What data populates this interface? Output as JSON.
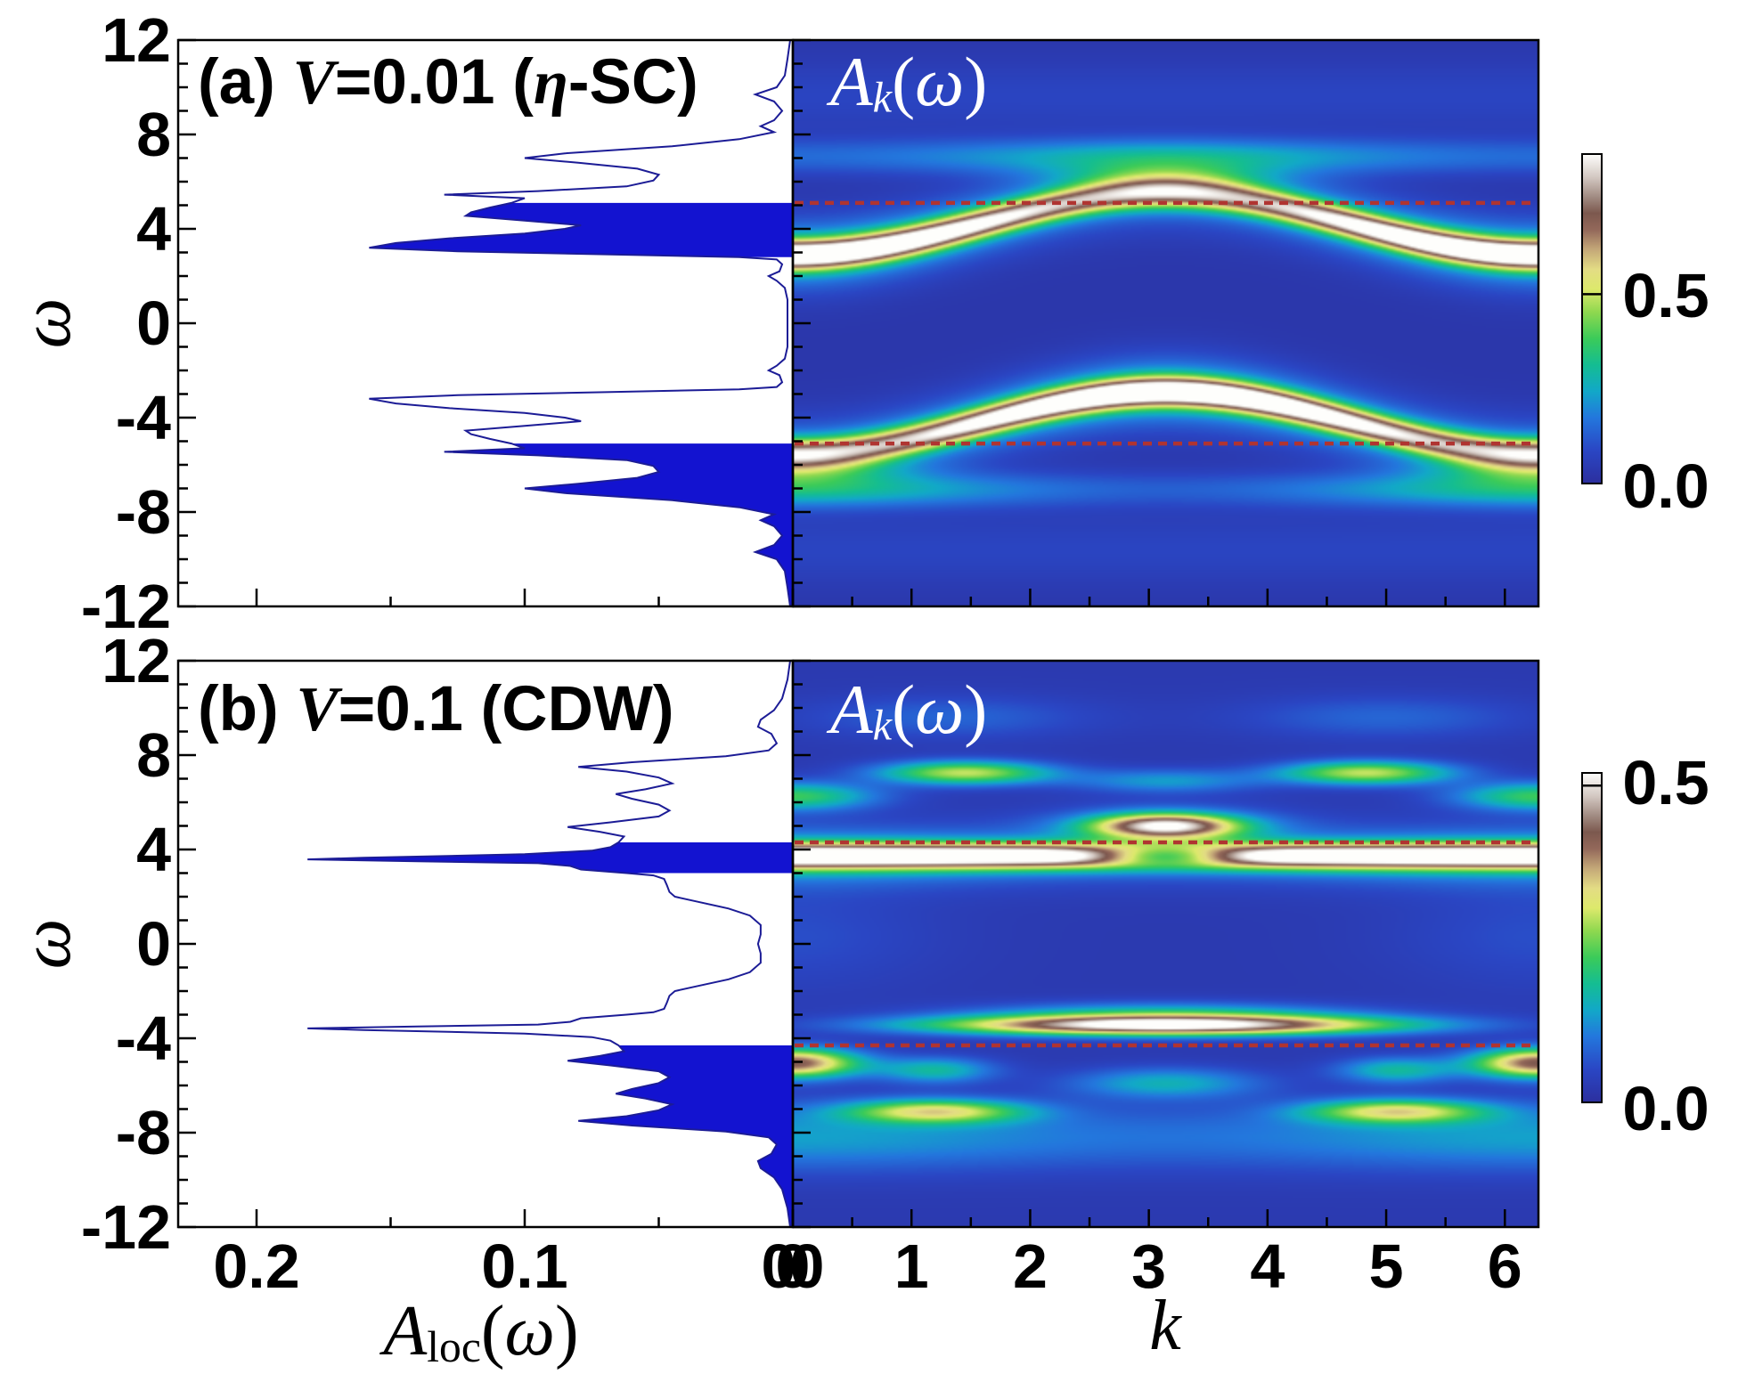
{
  "figure": {
    "omega_axis": {
      "label": "ω",
      "tick_labels": [
        "12",
        "8",
        "4",
        "0",
        "-4",
        "-8",
        "-12"
      ],
      "tick_values": [
        12,
        8,
        4,
        0,
        -4,
        -8,
        -12
      ],
      "minor_step": 1,
      "range": [
        -12,
        12
      ]
    },
    "aloc_axis": {
      "label_parts": [
        [
          "A",
          "rt-it"
        ],
        [
          "loc",
          "rt-sub"
        ],
        [
          "(",
          "rt-sr"
        ],
        [
          "ω",
          "rt-it"
        ],
        [
          ")",
          "rt-sr"
        ]
      ],
      "tick_labels": [
        "0.2",
        "0.1"
      ],
      "tick_values": [
        0.2,
        0.1
      ],
      "minor_values": [
        0.15,
        0.05
      ],
      "range_max": 0.229
    },
    "k_axis": {
      "label": "k",
      "tick_labels": [
        "1",
        "2",
        "3",
        "4",
        "5",
        "6"
      ],
      "tick_values": [
        1,
        2,
        3,
        4,
        5,
        6
      ],
      "minor_step": 0.5,
      "range": [
        0,
        6.2832
      ]
    },
    "junction_zero_labels": [
      "0",
      "0",
      "0"
    ],
    "panel_a": {
      "title_parts": [
        [
          "(a) ",
          "rt-rm"
        ],
        [
          "V",
          "rt-it"
        ],
        [
          "=",
          "rt-rm"
        ],
        [
          "0.01 (",
          "rt-rm"
        ],
        [
          "η",
          "rt-it"
        ],
        [
          "-SC)",
          "rt-rm"
        ]
      ],
      "heatmap_label_parts": [
        [
          "A",
          "rt-it"
        ],
        [
          "k",
          "rt-subit"
        ],
        [
          "(",
          "rt-sr"
        ],
        [
          "ω",
          "rt-it"
        ],
        [
          ")",
          "rt-sr"
        ]
      ],
      "colorbar_labels": [
        "0.5",
        "0.0"
      ]
    },
    "panel_b": {
      "title_parts": [
        [
          "(b) ",
          "rt-rm"
        ],
        [
          "V",
          "rt-it"
        ],
        [
          "=",
          "rt-rm"
        ],
        [
          "0.1 (",
          "rt-rm"
        ],
        [
          "CDW)",
          "rt-rm"
        ]
      ],
      "heatmap_label_parts": [
        [
          "A",
          "rt-it"
        ],
        [
          "k",
          "rt-subit"
        ],
        [
          "(",
          "rt-sr"
        ],
        [
          "ω",
          "rt-it"
        ],
        [
          ")",
          "rt-sr"
        ]
      ],
      "colorbar_labels": [
        "0.5",
        "0.0"
      ]
    },
    "colors": {
      "fill_blue": "#1313d0",
      "curve_navy": "#1c1c96",
      "dashed_line": "#b03431",
      "frame": "#000000",
      "heatmap_text": "#ffffff"
    }
  },
  "chart_data": [
    {
      "panel": "a",
      "type": "heatmap",
      "title": "(a) V=0.01 (η-SC)",
      "heatmap_title": "Ak(ω)",
      "xlabel": "k",
      "ylabel": "ω",
      "x_range": [
        0,
        6.2832
      ],
      "y_range": [
        -12,
        12
      ],
      "left_plot_label": "Aloc(ω)",
      "left_plot_axis_max": 0.229,
      "colorbar": {
        "labeled_ticks": [
          0.5,
          0.0
        ],
        "scale_max": 0.87
      },
      "chemical_potential_dashed_lines_omega": [
        5.1,
        -5.1
      ],
      "aloc_profile_abs_omega": [
        [
          12,
          0.001
        ],
        [
          11.2,
          0.002
        ],
        [
          10.5,
          0.003
        ],
        [
          10.0,
          0.006
        ],
        [
          9.7,
          0.014
        ],
        [
          9.4,
          0.007
        ],
        [
          9.0,
          0.004
        ],
        [
          8.6,
          0.007
        ],
        [
          8.35,
          0.012
        ],
        [
          8.1,
          0.007
        ],
        [
          7.8,
          0.02
        ],
        [
          7.5,
          0.045
        ],
        [
          7.2,
          0.085
        ],
        [
          7.0,
          0.1
        ],
        [
          6.8,
          0.08
        ],
        [
          6.55,
          0.058
        ],
        [
          6.3,
          0.05
        ],
        [
          6.05,
          0.052
        ],
        [
          5.8,
          0.062
        ],
        [
          5.6,
          0.095
        ],
        [
          5.45,
          0.13
        ],
        [
          5.3,
          0.1
        ],
        [
          5.1,
          0.105
        ],
        [
          4.9,
          0.113
        ],
        [
          4.7,
          0.12
        ],
        [
          4.55,
          0.122
        ],
        [
          4.35,
          0.1
        ],
        [
          4.15,
          0.079
        ],
        [
          4.0,
          0.085
        ],
        [
          3.8,
          0.1
        ],
        [
          3.6,
          0.128
        ],
        [
          3.4,
          0.148
        ],
        [
          3.2,
          0.158
        ],
        [
          3.05,
          0.125
        ],
        [
          2.92,
          0.07
        ],
        [
          2.8,
          0.02
        ],
        [
          2.7,
          0.006
        ],
        [
          2.5,
          0.004
        ],
        [
          2.2,
          0.005
        ],
        [
          2.0,
          0.009
        ],
        [
          1.8,
          0.006
        ],
        [
          1.5,
          0.003
        ],
        [
          1.0,
          0.002
        ],
        [
          0.5,
          0.002
        ],
        [
          0,
          0.002
        ]
      ],
      "fill_omega_ranges": [
        [
          2.8,
          5.1
        ],
        [
          -12,
          -5.1
        ]
      ],
      "intensity_base": 0.03,
      "intensity_max": 0.87,
      "heatmap_components": [
        {
          "kind": "band",
          "c0": 4.2,
          "c1": -1.3,
          "s": 0.42,
          "a0": 0.72,
          "a1": 0.17
        },
        {
          "kind": "band",
          "c0": 4.2,
          "c1": -1.3,
          "s": 1.05,
          "a0": 0.2,
          "a1": 0.04
        },
        {
          "kind": "band",
          "c0": -4.2,
          "c1": -1.3,
          "s": 0.42,
          "a0": 0.72,
          "a1": -0.17
        },
        {
          "kind": "band",
          "c0": -4.2,
          "c1": -1.3,
          "s": 1.05,
          "a0": 0.2,
          "a1": -0.04
        },
        {
          "kind": "blob",
          "k": 3.1416,
          "w": 6.0,
          "sk": 0.8,
          "sw": 0.75,
          "a": 0.22,
          "mirror": false
        },
        {
          "kind": "blob",
          "k": 0,
          "w": -6.0,
          "sk": 0.8,
          "sw": 0.75,
          "a": 0.22,
          "mirror": true
        },
        {
          "kind": "band",
          "c0": 7.05,
          "c1": 0,
          "s": 0.55,
          "a0": 0.17,
          "a1": -0.05
        },
        {
          "kind": "band",
          "c0": -7.05,
          "c1": 0,
          "s": 0.55,
          "a0": 0.17,
          "a1": 0.07
        },
        {
          "kind": "band",
          "c0": 9.6,
          "c1": 0,
          "s": 1.1,
          "a0": 0.05,
          "a1": 0
        },
        {
          "kind": "band",
          "c0": -9.6,
          "c1": 0,
          "s": 1.1,
          "a0": 0.05,
          "a1": 0
        }
      ]
    },
    {
      "panel": "b",
      "type": "heatmap",
      "title": "(b) V=0.1 (CDW)",
      "heatmap_title": "Ak(ω)",
      "xlabel": "k",
      "ylabel": "ω",
      "x_range": [
        0,
        6.2832
      ],
      "y_range": [
        -12,
        12
      ],
      "left_plot_label": "Aloc(ω)",
      "left_plot_axis_max": 0.229,
      "colorbar": {
        "labeled_ticks": [
          0.5,
          0.0
        ],
        "scale_max": 0.52
      },
      "chemical_potential_dashed_lines_omega": [
        4.3,
        -4.3
      ],
      "aloc_profile_abs_omega": [
        [
          12,
          0.001
        ],
        [
          11.2,
          0.002
        ],
        [
          10.4,
          0.004
        ],
        [
          9.9,
          0.007
        ],
        [
          9.5,
          0.012
        ],
        [
          9.2,
          0.013
        ],
        [
          8.9,
          0.008
        ],
        [
          8.5,
          0.006
        ],
        [
          8.2,
          0.009
        ],
        [
          7.95,
          0.025
        ],
        [
          7.7,
          0.06
        ],
        [
          7.5,
          0.08
        ],
        [
          7.3,
          0.062
        ],
        [
          7.05,
          0.05
        ],
        [
          6.8,
          0.045
        ],
        [
          6.55,
          0.055
        ],
        [
          6.35,
          0.066
        ],
        [
          6.15,
          0.06
        ],
        [
          5.9,
          0.05
        ],
        [
          5.65,
          0.046
        ],
        [
          5.4,
          0.05
        ],
        [
          5.15,
          0.068
        ],
        [
          4.95,
          0.084
        ],
        [
          4.75,
          0.072
        ],
        [
          4.55,
          0.063
        ],
        [
          4.3,
          0.065
        ],
        [
          4.1,
          0.068
        ],
        [
          3.95,
          0.075
        ],
        [
          3.8,
          0.1
        ],
        [
          3.65,
          0.16
        ],
        [
          3.58,
          0.181
        ],
        [
          3.5,
          0.14
        ],
        [
          3.42,
          0.095
        ],
        [
          3.3,
          0.083
        ],
        [
          3.15,
          0.079
        ],
        [
          3.0,
          0.062
        ],
        [
          2.9,
          0.052
        ],
        [
          2.75,
          0.048
        ],
        [
          2.5,
          0.047
        ],
        [
          2.2,
          0.046
        ],
        [
          2.0,
          0.044
        ],
        [
          1.8,
          0.036
        ],
        [
          1.5,
          0.024
        ],
        [
          1.2,
          0.016
        ],
        [
          0.8,
          0.012
        ],
        [
          0.4,
          0.012
        ],
        [
          0,
          0.013
        ]
      ],
      "fill_omega_ranges": [
        [
          3.0,
          4.3
        ],
        [
          -12,
          -4.3
        ]
      ],
      "intensity_base": 0.025,
      "intensity_max": 0.52,
      "heatmap_components": [
        {
          "kind": "band",
          "c0": 3.72,
          "c1": 0,
          "s": 0.36,
          "a0": 0.52,
          "a1": 0
        },
        {
          "kind": "blob",
          "k": 3.1416,
          "w": 3.72,
          "sk": 0.62,
          "sw": 0.4,
          "a": -0.4,
          "mirror": false
        },
        {
          "kind": "band",
          "c0": 3.72,
          "c1": 0,
          "s": 0.85,
          "a0": 0.11,
          "a1": 0.03
        },
        {
          "kind": "blob",
          "k": 3.1416,
          "w": 5.0,
          "sk": 0.6,
          "sw": 0.5,
          "a": 0.4,
          "mirror": false
        },
        {
          "kind": "blob",
          "k": 3.1416,
          "w": 5.0,
          "sk": 0.95,
          "sw": 0.85,
          "a": 0.1,
          "mirror": false
        },
        {
          "kind": "blob",
          "k": 1.45,
          "w": 7.25,
          "sk": 0.72,
          "sw": 0.5,
          "a": 0.27,
          "mirror": true
        },
        {
          "kind": "blob",
          "k": 0,
          "w": 6.25,
          "sk": 0.7,
          "sw": 0.6,
          "a": 0.2,
          "mirror": true
        },
        {
          "kind": "blob",
          "k": 3.1416,
          "w": 6.9,
          "sk": 0.8,
          "sw": 0.5,
          "a": 0.11,
          "mirror": false
        },
        {
          "kind": "blob",
          "k": 1.3,
          "w": 9.6,
          "sk": 1.2,
          "sw": 0.9,
          "a": 0.06,
          "mirror": true
        },
        {
          "kind": "blob",
          "k": 3.1416,
          "w": -3.45,
          "sk": 1.85,
          "sw": 0.42,
          "a": 0.52,
          "mirror": false
        },
        {
          "kind": "blob",
          "k": 3.1416,
          "w": -2.95,
          "sk": 1.6,
          "sw": 0.5,
          "a": 0.13,
          "mirror": false
        },
        {
          "kind": "blob",
          "k": 0,
          "w": -5.05,
          "sk": 0.55,
          "sw": 0.62,
          "a": 0.4,
          "mirror": true
        },
        {
          "kind": "blob",
          "k": 1.2,
          "w": -5.35,
          "sk": 0.5,
          "sw": 0.55,
          "a": 0.15,
          "mirror": true
        },
        {
          "kind": "blob",
          "k": 1.2,
          "w": -7.1,
          "sk": 0.75,
          "sw": 0.5,
          "a": 0.27,
          "mirror": true
        },
        {
          "kind": "blob",
          "k": 3.1416,
          "w": -5.9,
          "sk": 0.8,
          "sw": 0.65,
          "a": 0.13,
          "mirror": false
        },
        {
          "kind": "band",
          "c0": -8.2,
          "c1": 0,
          "s": 1.0,
          "a0": 0.095,
          "a1": 0.02
        },
        {
          "kind": "blob",
          "k": 0,
          "w": 0.3,
          "sk": 1.2,
          "sw": 2.2,
          "a": 0.035,
          "mirror": true
        }
      ]
    }
  ],
  "colormap_stops": [
    [
      0.0,
      "#2c2f9e"
    ],
    [
      0.1,
      "#2a46c4"
    ],
    [
      0.2,
      "#2377dd"
    ],
    [
      0.28,
      "#12a8c8"
    ],
    [
      0.36,
      "#14bd92"
    ],
    [
      0.44,
      "#3bcb59"
    ],
    [
      0.52,
      "#8ed84f"
    ],
    [
      0.59,
      "#dde96c"
    ],
    [
      0.65,
      "#e3dc84"
    ],
    [
      0.71,
      "#c4a878"
    ],
    [
      0.77,
      "#93685a"
    ],
    [
      0.82,
      "#7c584e"
    ],
    [
      0.87,
      "#a18b82"
    ],
    [
      0.93,
      "#d3c8c2"
    ],
    [
      1.0,
      "#fefefc"
    ]
  ]
}
